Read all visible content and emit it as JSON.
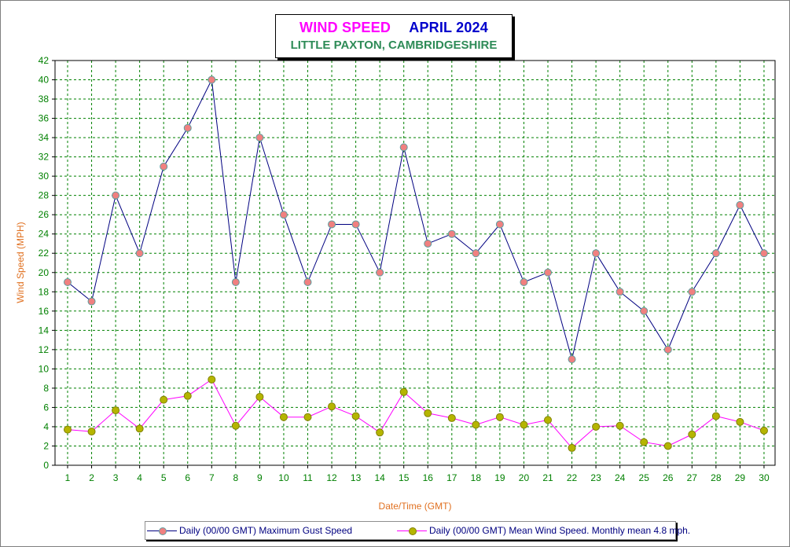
{
  "title": {
    "main": "WIND SPEED",
    "month": "APRIL 2024",
    "subtitle": "LITTLE PAXTON, CAMBRIDGESHIRE"
  },
  "chart_data": {
    "type": "line",
    "xlabel": "Date/Time (GMT)",
    "ylabel": "Wind Speed (MPH)",
    "categories": [
      "1",
      "2",
      "3",
      "4",
      "5",
      "6",
      "7",
      "8",
      "9",
      "10",
      "11",
      "12",
      "13",
      "14",
      "15",
      "16",
      "17",
      "18",
      "19",
      "20",
      "21",
      "22",
      "23",
      "24",
      "25",
      "26",
      "27",
      "28",
      "29",
      "30"
    ],
    "ylim": [
      0,
      42
    ],
    "y_ticks": [
      0,
      2,
      4,
      6,
      8,
      10,
      12,
      14,
      16,
      18,
      20,
      22,
      24,
      26,
      28,
      30,
      32,
      34,
      36,
      38,
      40,
      42
    ],
    "grid": true,
    "legend_position": "bottom",
    "series": [
      {
        "name": "Daily (00/00 GMT) Maximum Gust Speed",
        "line_color": "#000080",
        "marker_color": "#f08080",
        "values": [
          19,
          17,
          28,
          22,
          31,
          35,
          40,
          19,
          34,
          26,
          19,
          25,
          25,
          20,
          33,
          23,
          24,
          22,
          25,
          19,
          20,
          11,
          22,
          18,
          16,
          12,
          18,
          22,
          27,
          22
        ]
      },
      {
        "name": "Daily (00/00 GMT) Mean Wind Speed. Monthly mean 4.8 mph.",
        "line_color": "#ff00ff",
        "marker_color": "#b5b500",
        "values": [
          3.7,
          3.5,
          5.7,
          3.8,
          6.8,
          7.2,
          8.9,
          4.1,
          7.1,
          5.0,
          5.0,
          6.1,
          5.1,
          3.4,
          7.6,
          5.4,
          4.9,
          4.2,
          5.0,
          4.2,
          4.7,
          1.8,
          4.0,
          4.1,
          2.4,
          2.0,
          3.2,
          5.1,
          4.5,
          3.6
        ]
      }
    ]
  },
  "colors": {
    "grid": "#008000",
    "axis_tick_text": "#008000",
    "axis_title": "#e07020"
  }
}
